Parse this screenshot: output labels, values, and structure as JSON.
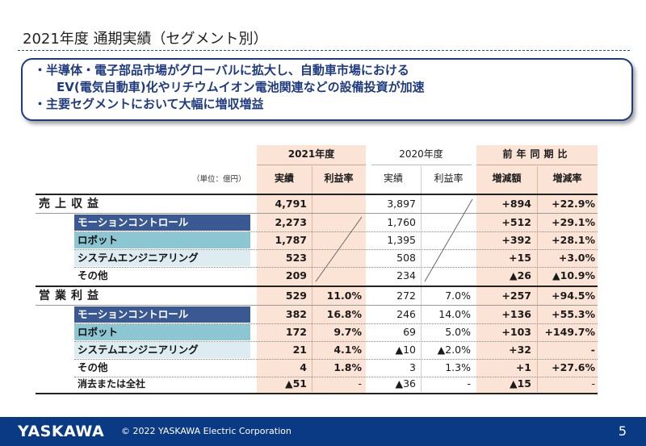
{
  "title": "2021年度 通期実績（セグメント別）",
  "summary": [
    "・半導体・電子部品市場がグローバルに拡大し、自動車市場における",
    "EV(電気自動車)化やリチウムイオン電池関連などの設備投資が加速",
    "・主要セグメントにおいて大幅に増収増益"
  ],
  "table": {
    "unit": "（単位：億円）",
    "groups": {
      "fy2021": "2021年度",
      "fy2020": "2020年度",
      "yoy": "前年同期比"
    },
    "subheaders": {
      "actual": "実績",
      "margin": "利益率",
      "actual2020": "実績",
      "margin2020": "利益率",
      "diff": "増減額",
      "rate": "増減率"
    },
    "sections": {
      "revenue": "売上収益",
      "op_income": "営業利益"
    },
    "revenue_total": {
      "a21": "4,791",
      "a20": "3,897",
      "diff": "+894",
      "rate": "+22.9%"
    },
    "revenue_rows": [
      {
        "label": "モーションコントロール",
        "a21": "2,273",
        "a20": "1,760",
        "diff": "+512",
        "rate": "+29.1%"
      },
      {
        "label": "ロボット",
        "a21": "1,787",
        "a20": "1,395",
        "diff": "+392",
        "rate": "+28.1%"
      },
      {
        "label": "システムエンジニアリング",
        "a21": "523",
        "a20": "508",
        "diff": "+15",
        "rate": "+3.0%"
      },
      {
        "label": "その他",
        "a21": "209",
        "a20": "234",
        "diff": "▲26",
        "rate": "▲10.9%"
      }
    ],
    "op_total": {
      "a21": "529",
      "m21": "11.0%",
      "a20": "272",
      "m20": "7.0%",
      "diff": "+257",
      "rate": "+94.5%"
    },
    "op_rows": [
      {
        "label": "モーションコントロール",
        "a21": "382",
        "m21": "16.8%",
        "a20": "246",
        "m20": "14.0%",
        "diff": "+136",
        "rate": "+55.3%"
      },
      {
        "label": "ロボット",
        "a21": "172",
        "m21": "9.7%",
        "a20": "69",
        "m20": "5.0%",
        "diff": "+103",
        "rate": "+149.7%"
      },
      {
        "label": "システムエンジニアリング",
        "a21": "21",
        "m21": "4.1%",
        "a20": "▲10",
        "m20": "▲2.0%",
        "diff": "+32",
        "rate": "-"
      },
      {
        "label": "その他",
        "a21": "4",
        "m21": "1.8%",
        "a20": "3",
        "m20": "1.3%",
        "diff": "+1",
        "rate": "+27.6%"
      },
      {
        "label": "消去または全社",
        "a21": "▲51",
        "m21": "-",
        "a20": "▲36",
        "m20": "-",
        "diff": "▲15",
        "rate": "-"
      }
    ]
  },
  "footer": {
    "logo": "YASKAWA",
    "copyright": "© 2022 YASKAWA Electric Corporation",
    "page": "5"
  },
  "colors": {
    "brand_blue": "#0b3a85",
    "highlight_peach": "#fbe4d6",
    "seg_dark": "#3a5891",
    "seg_light": "#8bc6d2",
    "seg_pale": "#dcecf0"
  }
}
